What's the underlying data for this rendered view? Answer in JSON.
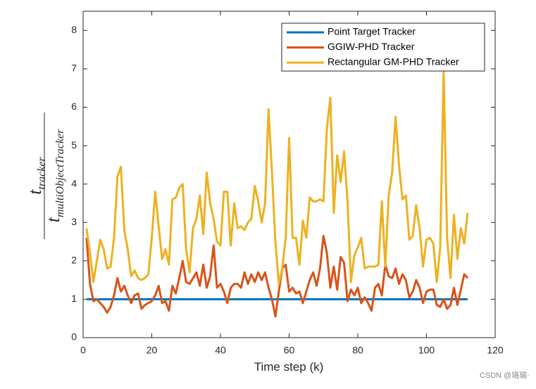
{
  "chart_data": {
    "type": "line",
    "xlabel": "Time step (k)",
    "ylabel": {
      "numerator": {
        "base": "t",
        "sub": "tracker"
      },
      "denominator": {
        "base": "t",
        "sub": "multiObjectTracker"
      }
    },
    "watermark": "CSDN @珞瑜·",
    "legend": "northeast",
    "xlim": [
      0,
      120
    ],
    "xticks": [
      0,
      20,
      40,
      60,
      80,
      100,
      120
    ],
    "ylim": [
      0,
      8.5
    ],
    "yticks": [
      0,
      1,
      2,
      3,
      4,
      5,
      6,
      7,
      8
    ],
    "x": [
      1,
      2,
      3,
      4,
      5,
      6,
      7,
      8,
      9,
      10,
      11,
      12,
      13,
      14,
      15,
      16,
      17,
      18,
      19,
      20,
      21,
      22,
      23,
      24,
      25,
      26,
      27,
      28,
      29,
      30,
      31,
      32,
      33,
      34,
      35,
      36,
      37,
      38,
      39,
      40,
      41,
      42,
      43,
      44,
      45,
      46,
      47,
      48,
      49,
      50,
      51,
      52,
      53,
      54,
      55,
      56,
      57,
      58,
      59,
      60,
      61,
      62,
      63,
      64,
      65,
      66,
      67,
      68,
      69,
      70,
      71,
      72,
      73,
      74,
      75,
      76,
      77,
      78,
      79,
      80,
      81,
      82,
      83,
      84,
      85,
      86,
      87,
      88,
      89,
      90,
      91,
      92,
      93,
      94,
      95,
      96,
      97,
      98,
      99,
      100,
      101,
      102,
      103,
      104,
      105,
      106,
      107,
      108,
      109,
      110,
      111,
      112
    ],
    "series": [
      {
        "name": "Point Target Tracker",
        "color": "#0072bd",
        "values": [
          1,
          1,
          1,
          1,
          1,
          1,
          1,
          1,
          1,
          1,
          1,
          1,
          1,
          1,
          1,
          1,
          1,
          1,
          1,
          1,
          1,
          1,
          1,
          1,
          1,
          1,
          1,
          1,
          1,
          1,
          1,
          1,
          1,
          1,
          1,
          1,
          1,
          1,
          1,
          1,
          1,
          1,
          1,
          1,
          1,
          1,
          1,
          1,
          1,
          1,
          1,
          1,
          1,
          1,
          1,
          1,
          1,
          1,
          1,
          1,
          1,
          1,
          1,
          1,
          1,
          1,
          1,
          1,
          1,
          1,
          1,
          1,
          1,
          1,
          1,
          1,
          1,
          1,
          1,
          1,
          1,
          1,
          1,
          1,
          1,
          1,
          1,
          1,
          1,
          1,
          1,
          1,
          1,
          1,
          1,
          1,
          1,
          1,
          1,
          1,
          1,
          1,
          1,
          1,
          1,
          1,
          1,
          1,
          1,
          1,
          1,
          1
        ]
      },
      {
        "name": "GGIW-PHD Tracker",
        "color": "#d95319",
        "values": [
          2.6,
          1.4,
          0.95,
          1.0,
          0.9,
          0.8,
          0.65,
          0.8,
          1.1,
          1.55,
          1.2,
          1.35,
          1.1,
          0.9,
          1.1,
          1.15,
          0.75,
          0.85,
          0.9,
          0.95,
          1.1,
          1.35,
          0.9,
          0.95,
          0.7,
          1.35,
          1.15,
          1.55,
          2.0,
          1.45,
          1.4,
          1.55,
          1.7,
          1.35,
          1.9,
          1.3,
          1.6,
          2.4,
          1.3,
          1.4,
          1.2,
          0.9,
          1.3,
          1.4,
          1.4,
          1.3,
          1.7,
          1.4,
          1.65,
          1.45,
          1.7,
          1.5,
          1.7,
          1.3,
          1.0,
          0.55,
          1.2,
          1.8,
          1.9,
          1.2,
          1.3,
          1.15,
          1.2,
          0.9,
          1.2,
          1.5,
          1.7,
          1.35,
          1.8,
          2.65,
          2.2,
          1.3,
          1.85,
          1.25,
          2.1,
          1.95,
          0.95,
          1.25,
          1.1,
          1.3,
          0.9,
          1.05,
          0.9,
          0.7,
          1.3,
          1.4,
          1.1,
          1.9,
          1.6,
          1.55,
          1.8,
          1.4,
          1.65,
          1.5,
          1.05,
          1.2,
          1.5,
          1.3,
          0.9,
          1.2,
          1.25,
          1.25,
          0.85,
          0.8,
          1.0,
          0.75,
          0.85,
          1.3,
          0.85,
          1.25,
          1.65,
          1.55
        ]
      },
      {
        "name": "Rectangular GM-PHD Tracker",
        "color": "#edb120",
        "values": [
          2.85,
          2.2,
          1.45,
          2.0,
          2.55,
          2.3,
          1.8,
          1.85,
          2.6,
          4.2,
          4.45,
          2.8,
          2.3,
          1.6,
          1.75,
          1.55,
          1.5,
          1.55,
          1.65,
          2.6,
          3.8,
          2.9,
          2.05,
          2.3,
          1.9,
          3.6,
          3.65,
          3.9,
          4.0,
          2.3,
          1.7,
          2.85,
          3.1,
          3.7,
          2.7,
          4.3,
          3.5,
          3.1,
          2.5,
          2.4,
          3.8,
          3.8,
          2.4,
          3.5,
          2.85,
          2.9,
          2.8,
          3.0,
          3.1,
          3.95,
          3.55,
          3.0,
          3.5,
          5.95,
          4.3,
          2.5,
          1.4,
          1.8,
          2.6,
          5.2,
          2.6,
          2.6,
          1.9,
          3.05,
          2.6,
          3.65,
          3.55,
          3.55,
          3.6,
          3.55,
          5.45,
          6.25,
          3.25,
          4.75,
          4.05,
          4.85,
          3.55,
          1.45,
          2.15,
          2.35,
          2.6,
          1.8,
          1.85,
          1.85,
          1.85,
          1.9,
          3.55,
          1.85,
          3.7,
          4.3,
          5.75,
          4.5,
          3.6,
          3.7,
          2.55,
          2.65,
          3.45,
          2.85,
          1.85,
          2.55,
          2.6,
          2.45,
          1.45,
          2.35,
          6.95,
          2.6,
          1.55,
          3.2,
          2.05,
          2.85,
          2.45,
          3.25
        ]
      }
    ]
  }
}
